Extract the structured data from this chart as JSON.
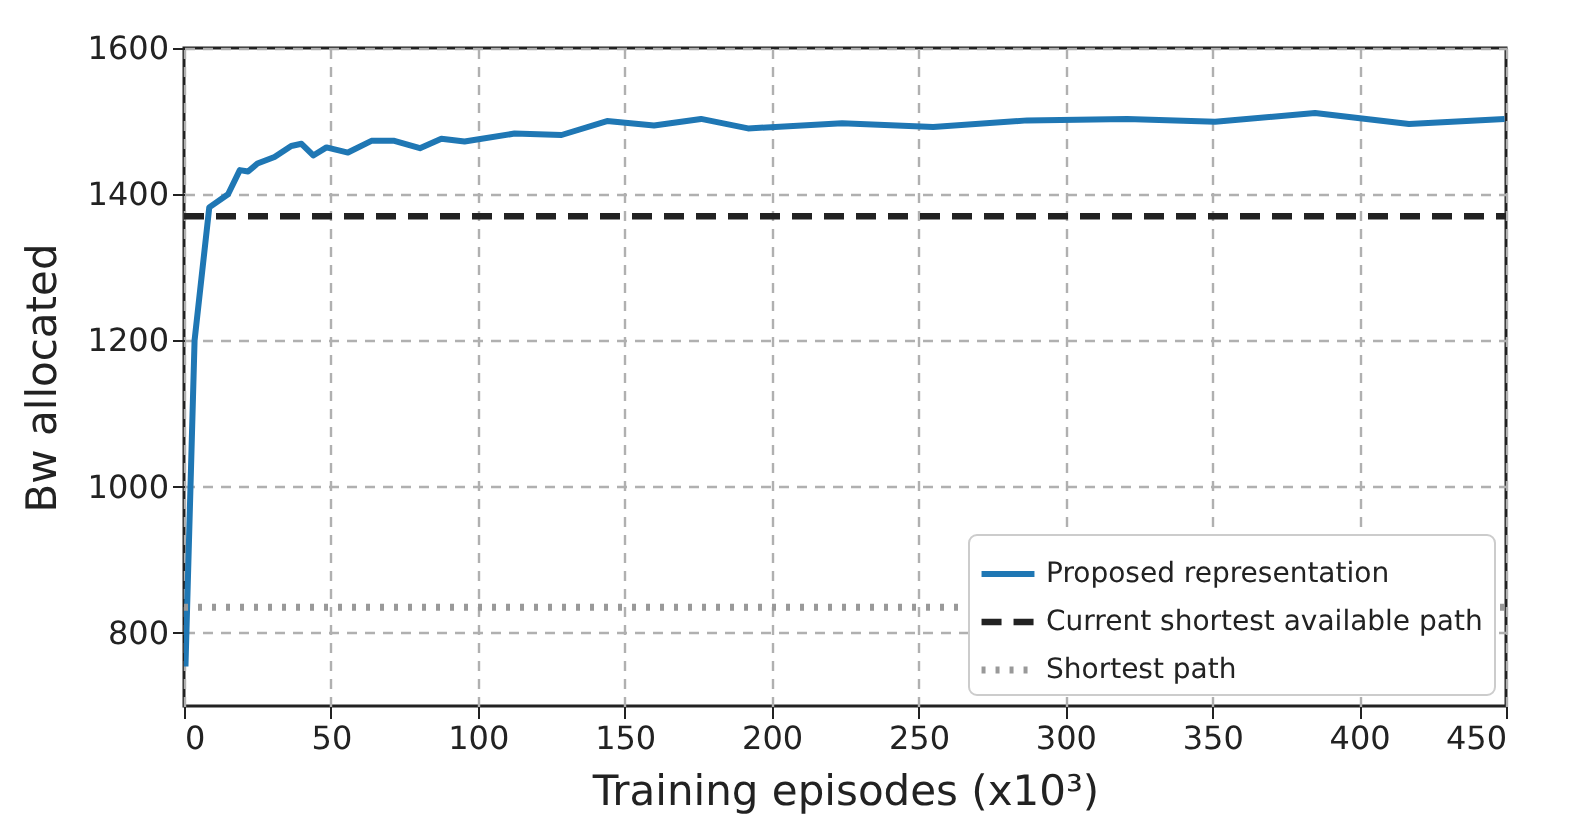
{
  "chart_data": {
    "type": "line",
    "xlabel": "Training episodes (x10³)",
    "ylabel": "Bw allocated",
    "xlim": [
      0,
      450
    ],
    "xticks": [
      0,
      50,
      100,
      150,
      200,
      250,
      300,
      350,
      400,
      450
    ],
    "ylim": [
      700,
      1600
    ],
    "yticks": [
      800,
      1000,
      1200,
      1400,
      1600
    ],
    "grid": true,
    "legend": "bottom right",
    "marker": "none",
    "series": [
      {
        "name": "Proposed representation",
        "color": "#1f77b4",
        "line_style": "solid",
        "x": [
          0.5,
          3.6,
          8.6,
          15,
          19,
          21.8,
          25,
          30.8,
          36.5,
          40,
          44,
          48.5,
          55.8,
          63.8,
          71.6,
          80.3,
          87.6,
          95.5,
          112.5,
          128.5,
          144,
          160,
          176,
          192,
          224,
          255,
          287,
          321,
          351,
          385,
          417,
          449.5
        ],
        "values": [
          754,
          1200,
          1382,
          1400,
          1433,
          1431,
          1442,
          1451,
          1466,
          1469,
          1453,
          1464,
          1457,
          1473,
          1473,
          1463,
          1476,
          1472,
          1483,
          1481,
          1500,
          1494,
          1503,
          1490,
          1497,
          1492,
          1501,
          1503,
          1499,
          1511,
          1496,
          1503
        ]
      },
      {
        "name": "Current shortest available path",
        "color": "#222222",
        "line_style": "dashed",
        "x": [
          0,
          450
        ],
        "values": [
          1370,
          1370
        ]
      },
      {
        "name": "Shortest  path",
        "color": "#999999",
        "line_style": "dotted",
        "x": [
          0,
          450
        ],
        "values": [
          835,
          835
        ]
      }
    ]
  }
}
